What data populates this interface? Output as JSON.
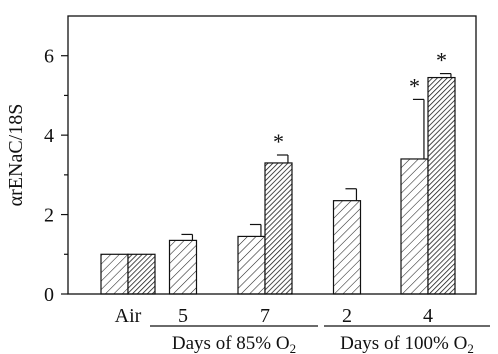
{
  "chart_data": {
    "type": "bar",
    "ylabel": "αrENaC/18S",
    "xlabel": "",
    "title": "",
    "ylim": [
      0,
      7
    ],
    "yticks": [
      0,
      2,
      4,
      6
    ],
    "grid": false,
    "legend": "none",
    "categories": [
      "Air",
      "5",
      "7",
      "2",
      "4"
    ],
    "series": [
      {
        "pattern": "light-hatch",
        "values": [
          1.0,
          1.35,
          1.45,
          2.35,
          3.4
        ],
        "errors": [
          0.0,
          0.15,
          0.3,
          0.3,
          1.5
        ],
        "significant": [
          false,
          false,
          false,
          false,
          true
        ]
      },
      {
        "pattern": "dark-hatch",
        "values": [
          1.0,
          null,
          3.3,
          null,
          5.45
        ],
        "errors": [
          0.0,
          null,
          0.2,
          null,
          0.1
        ],
        "significant": [
          false,
          false,
          true,
          false,
          true
        ]
      }
    ],
    "significance_mark": "*",
    "groups": [
      {
        "label": "Days of 85% O",
        "subscript": "2",
        "categories": [
          "5",
          "7"
        ]
      },
      {
        "label": "Days of 100% O",
        "subscript": "2",
        "categories": [
          "2",
          "4"
        ]
      }
    ]
  }
}
